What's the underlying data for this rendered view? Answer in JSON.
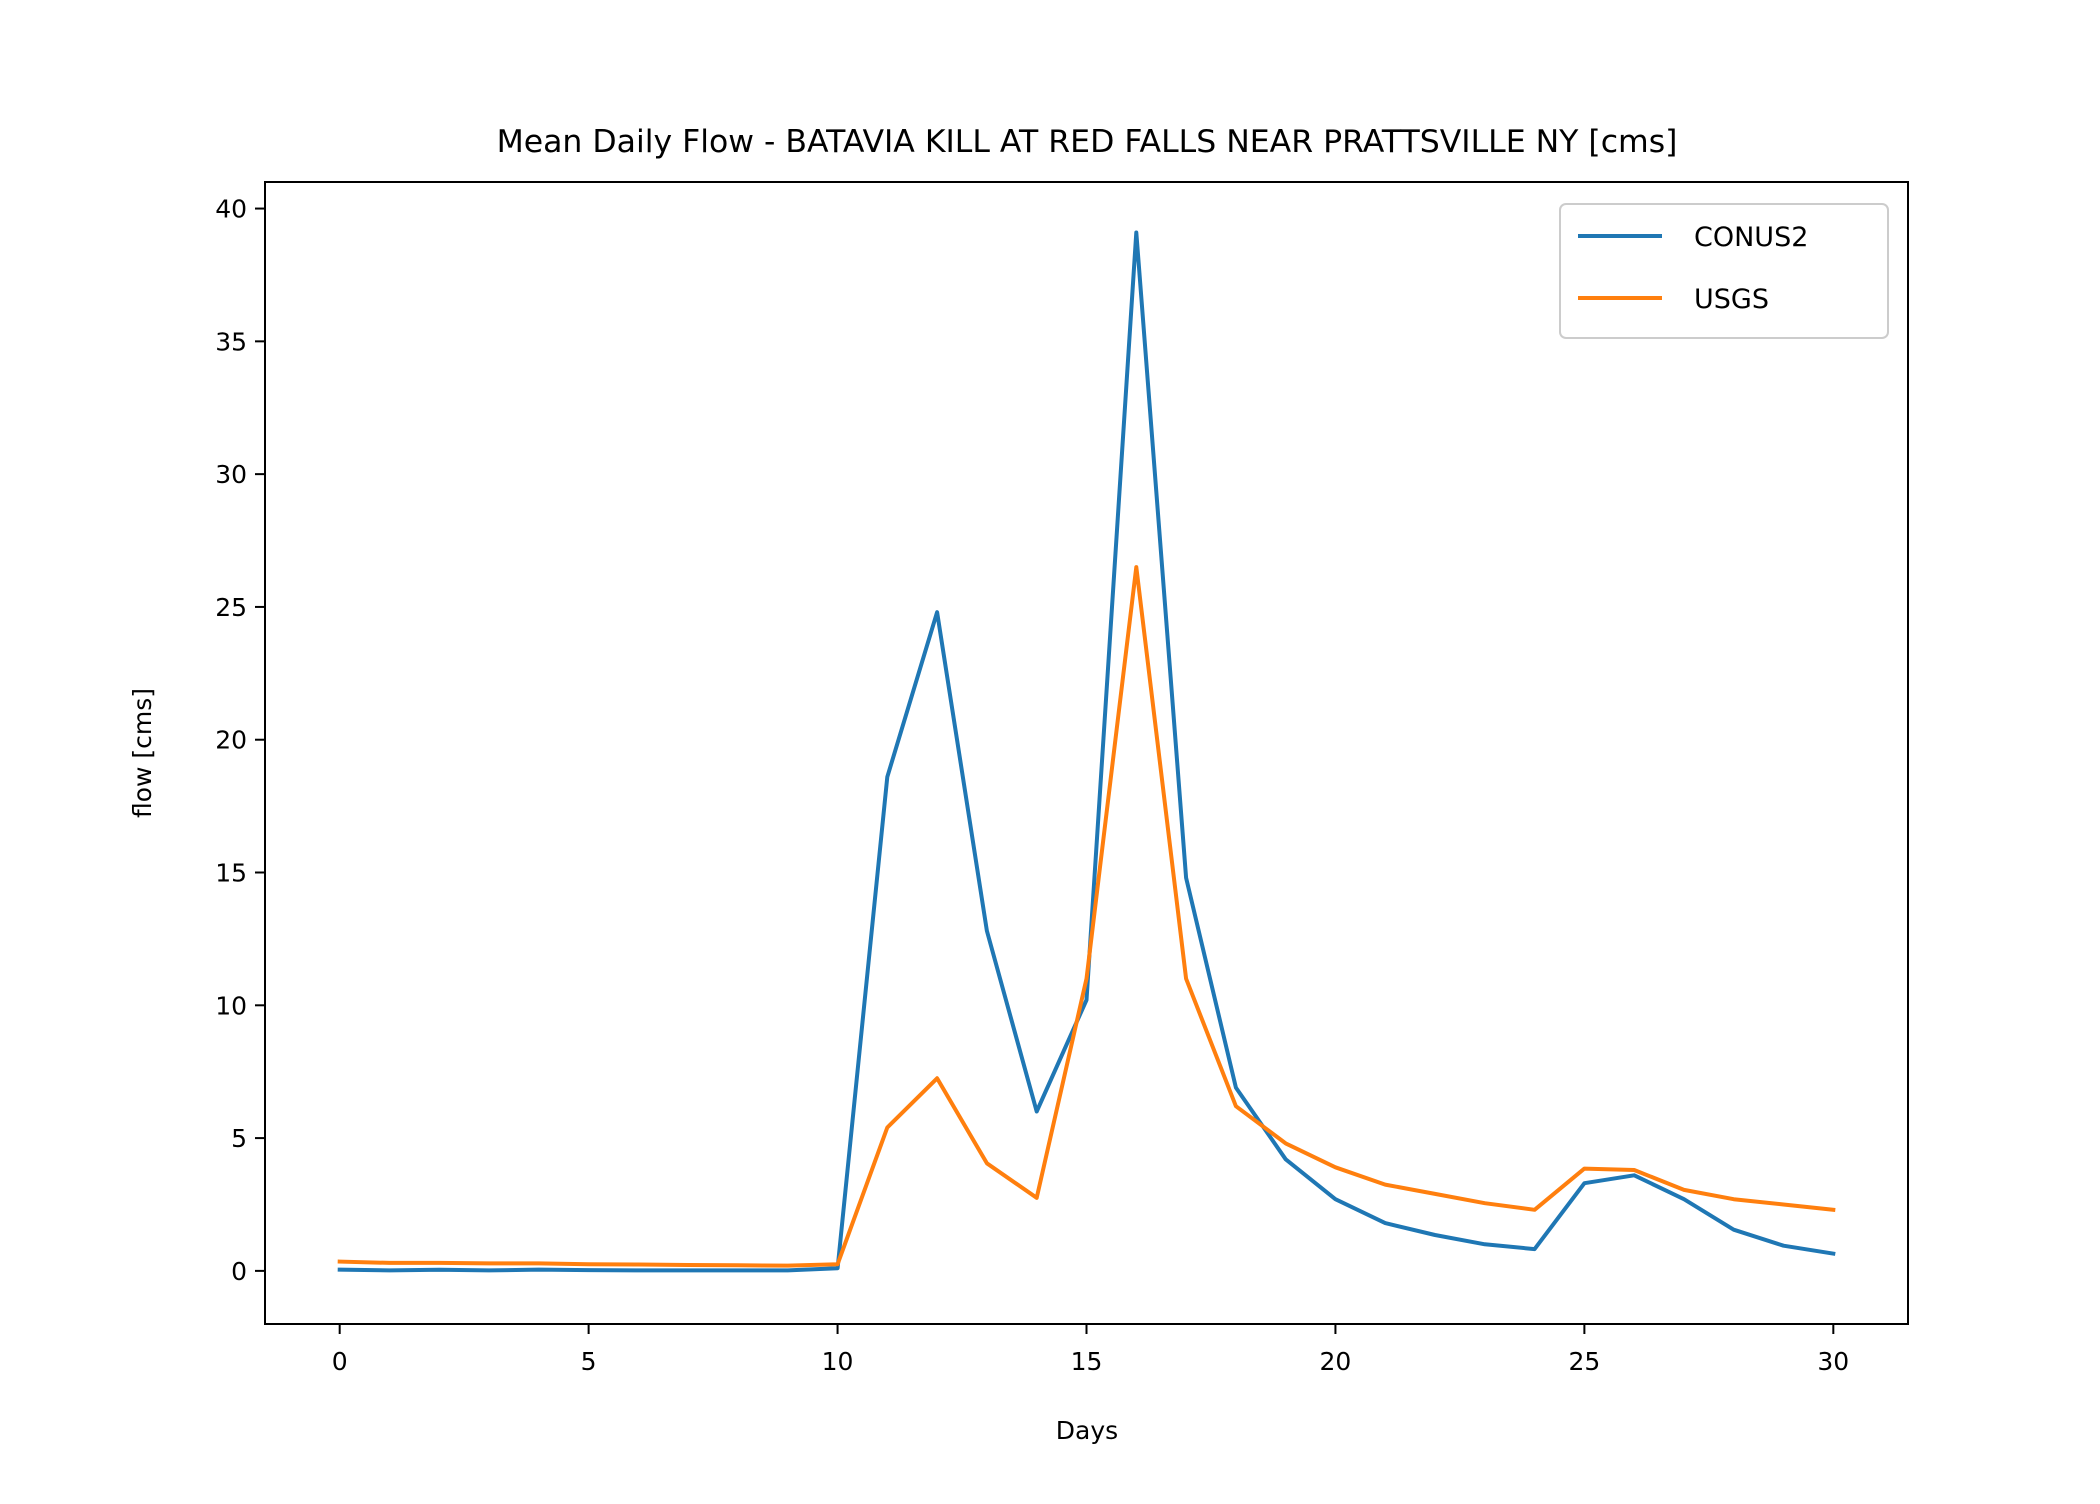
{
  "chart_data": {
    "type": "line",
    "title": "Mean Daily Flow - BATAVIA KILL AT RED FALLS NEAR PRATTSVILLE NY [cms]",
    "xlabel": "Days",
    "ylabel": "flow [cms]",
    "xlim": [
      -1.5,
      31.5
    ],
    "ylim": [
      -2,
      41
    ],
    "xticks": [
      0,
      5,
      10,
      15,
      20,
      25,
      30
    ],
    "xtick_labels": [
      "0",
      "5",
      "10",
      "15",
      "20",
      "25",
      "30"
    ],
    "yticks": [
      0,
      5,
      10,
      15,
      20,
      25,
      30,
      35,
      40
    ],
    "ytick_labels": [
      "0",
      "5",
      "10",
      "15",
      "20",
      "25",
      "30",
      "35",
      "40"
    ],
    "grid": false,
    "legend_position": "top-right",
    "x": [
      0,
      1,
      2,
      3,
      4,
      5,
      6,
      7,
      8,
      9,
      10,
      11,
      12,
      13,
      14,
      15,
      16,
      17,
      18,
      19,
      20,
      21,
      22,
      23,
      24,
      25,
      26,
      27,
      28,
      29,
      30
    ],
    "series": [
      {
        "name": "CONUS2",
        "color": "#1f77b4",
        "values": [
          0.05,
          0.02,
          0.04,
          0.02,
          0.05,
          0.03,
          0.02,
          0.02,
          0.02,
          0.02,
          0.1,
          18.6,
          24.8,
          12.8,
          6.0,
          10.2,
          39.1,
          14.8,
          6.9,
          4.2,
          2.7,
          1.8,
          1.35,
          1.0,
          0.82,
          3.3,
          3.6,
          2.7,
          1.55,
          0.95,
          0.65
        ]
      },
      {
        "name": "USGS",
        "color": "#ff7f0e",
        "values": [
          0.35,
          0.3,
          0.3,
          0.28,
          0.28,
          0.25,
          0.24,
          0.22,
          0.21,
          0.2,
          0.25,
          5.4,
          7.25,
          4.05,
          2.75,
          11.0,
          26.5,
          11.0,
          6.2,
          4.8,
          3.9,
          3.25,
          2.9,
          2.55,
          2.3,
          3.85,
          3.8,
          3.05,
          2.7,
          2.5,
          2.3
        ]
      }
    ]
  }
}
